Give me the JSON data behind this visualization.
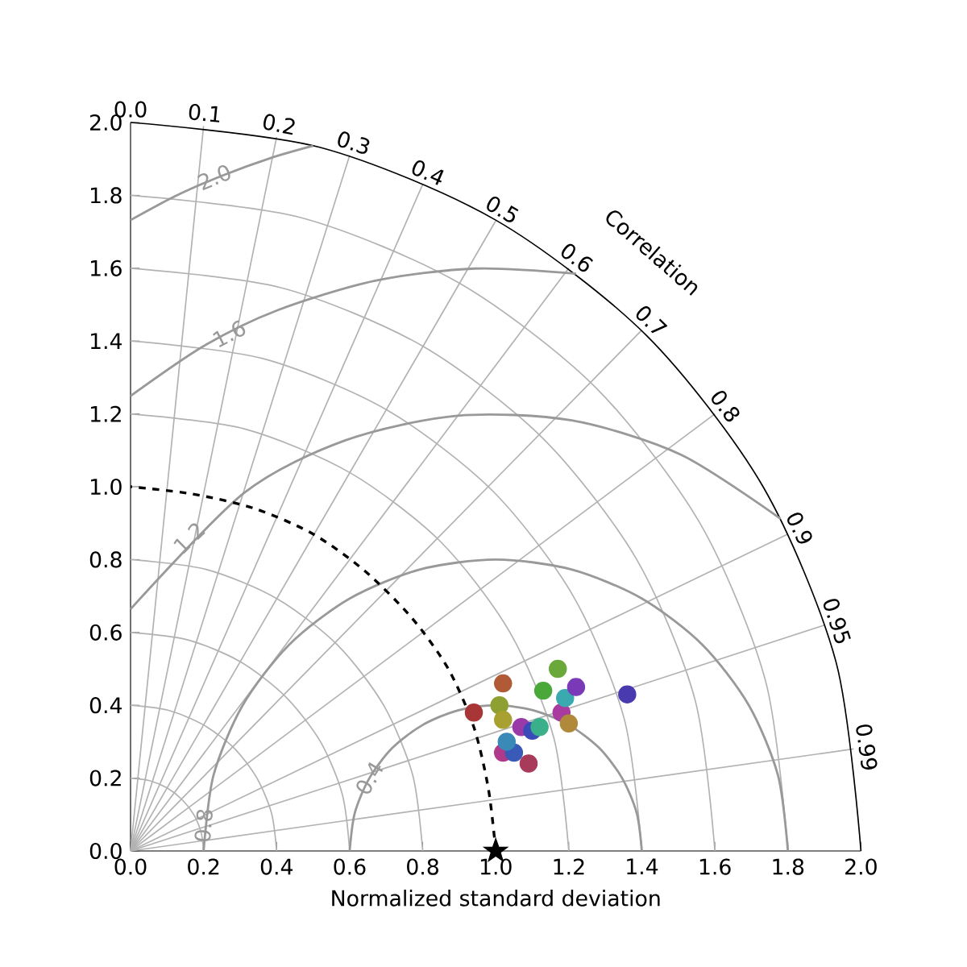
{
  "chart_data": {
    "type": "scatter",
    "xlabel": "Normalized standard deviation",
    "xlim": [
      0,
      2
    ],
    "ylim": [
      0,
      2
    ],
    "xticks": [
      {
        "value": 0,
        "label": "0.0"
      },
      0.2,
      0.4,
      0.6,
      0.8,
      {
        "value": 1,
        "label": "1.0"
      },
      1.2,
      1.4,
      1.6,
      1.8,
      {
        "value": 2,
        "label": "2.0"
      }
    ],
    "yticks": [
      {
        "value": 0,
        "label": "0.0"
      },
      0.2,
      0.4,
      0.6,
      0.8,
      {
        "value": 1,
        "label": "1.0"
      },
      1.2,
      1.4,
      1.6,
      1.8,
      {
        "value": 2,
        "label": "2.0"
      }
    ],
    "series": [
      {
        "type": "line",
        "color": "#b2b2b2",
        "x": [
          0.2,
          0.193,
          0.173,
          0.141,
          0.1,
          0.052,
          0
        ],
        "values": [
          0,
          0.052,
          0.1,
          0.141,
          0.173,
          0.193,
          0.2
        ]
      },
      {
        "type": "line",
        "color": "#b2b2b2",
        "x": [
          0.4,
          0.386,
          0.346,
          0.283,
          0.2,
          0.104,
          0
        ],
        "values": [
          0,
          0.104,
          0.2,
          0.283,
          0.346,
          0.386,
          0.4
        ]
      },
      {
        "type": "line",
        "color": "#b2b2b2",
        "x": [
          0.6,
          0.58,
          0.52,
          0.424,
          0.3,
          0.155,
          0
        ],
        "values": [
          0,
          0.155,
          0.3,
          0.424,
          0.52,
          0.58,
          0.6
        ]
      },
      {
        "type": "line",
        "color": "#b2b2b2",
        "x": [
          0.8,
          0.773,
          0.693,
          0.566,
          0.4,
          0.207,
          0
        ],
        "values": [
          0,
          0.207,
          0.4,
          0.566,
          0.693,
          0.773,
          0.8
        ]
      },
      {
        "type": "line",
        "color": "#b2b2b2",
        "x": [
          1.2,
          1.159,
          1.039,
          0.849,
          0.6,
          0.311,
          0
        ],
        "values": [
          0,
          0.311,
          0.6,
          0.849,
          1.039,
          1.159,
          1.2
        ]
      },
      {
        "type": "line",
        "color": "#b2b2b2",
        "x": [
          1.4,
          1.352,
          1.212,
          0.99,
          0.7,
          0.362,
          0
        ],
        "values": [
          0,
          0.362,
          0.7,
          0.99,
          1.212,
          1.352,
          1.4
        ]
      },
      {
        "type": "line",
        "color": "#b2b2b2",
        "x": [
          1.6,
          1.546,
          1.386,
          1.131,
          0.8,
          0.414,
          0
        ],
        "values": [
          0,
          0.414,
          0.8,
          1.131,
          1.386,
          1.546,
          1.6
        ]
      },
      {
        "type": "line",
        "color": "#b2b2b2",
        "x": [
          1.8,
          1.739,
          1.559,
          1.273,
          0.9,
          0.466,
          0
        ],
        "values": [
          0,
          0.466,
          0.9,
          1.273,
          1.559,
          1.739,
          1.8
        ]
      },
      {
        "type": "line",
        "color": "#b2b2b2",
        "x": [
          0,
          0.1,
          0.2
        ],
        "values": [
          0,
          0.995,
          1.99
        ]
      },
      {
        "type": "line",
        "color": "#b2b2b2",
        "x": [
          0,
          0.2,
          0.4
        ],
        "values": [
          0,
          0.98,
          1.96
        ]
      },
      {
        "type": "line",
        "color": "#b2b2b2",
        "x": [
          0,
          0.3,
          0.6
        ],
        "values": [
          0,
          0.955,
          1.91
        ]
      },
      {
        "type": "line",
        "color": "#b2b2b2",
        "x": [
          0,
          0.4,
          0.8
        ],
        "values": [
          0,
          0.915,
          1.83
        ]
      },
      {
        "type": "line",
        "color": "#b2b2b2",
        "x": [
          0,
          0.5,
          1.0
        ],
        "values": [
          0,
          0.865,
          1.73
        ]
      },
      {
        "type": "line",
        "color": "#b2b2b2",
        "x": [
          0,
          0.6,
          1.2
        ],
        "values": [
          0,
          0.8,
          1.6
        ]
      },
      {
        "type": "line",
        "color": "#b2b2b2",
        "x": [
          0,
          0.7,
          1.4
        ],
        "values": [
          0,
          0.715,
          1.43
        ]
      },
      {
        "type": "line",
        "color": "#b2b2b2",
        "x": [
          0,
          0.8,
          1.6
        ],
        "values": [
          0,
          0.6,
          1.2
        ]
      },
      {
        "type": "line",
        "color": "#b2b2b2",
        "x": [
          0,
          0.9,
          1.8
        ],
        "values": [
          0,
          0.435,
          0.87
        ]
      },
      {
        "type": "line",
        "color": "#b2b2b2",
        "x": [
          0,
          0.95,
          1.9
        ],
        "values": [
          0,
          0.31,
          0.62
        ]
      },
      {
        "type": "line",
        "color": "#b2b2b2",
        "x": [
          0,
          0.99,
          1.98
        ],
        "values": [
          0,
          0.14,
          0.28
        ]
      },
      {
        "type": "line",
        "color": "#000000",
        "x": [
          2,
          1.932,
          1.732,
          1.414,
          1,
          0.518,
          0
        ],
        "values": [
          0,
          0.518,
          1,
          1.414,
          1.732,
          1.932,
          2
        ]
      },
      {
        "type": "line",
        "color": "#999999",
        "x": [
          1.4,
          1.386,
          1.346,
          1.283,
          1.2,
          1.104,
          1,
          0.896,
          0.8,
          0.717,
          0.654,
          0.614,
          0.6
        ],
        "values": [
          0,
          0.104,
          0.2,
          0.283,
          0.346,
          0.386,
          0.4,
          0.386,
          0.346,
          0.283,
          0.2,
          0.104,
          0
        ]
      },
      {
        "type": "line",
        "color": "#999999",
        "x": [
          1.8,
          1.773,
          1.693,
          1.566,
          1.4,
          1.207,
          1,
          0.793,
          0.6,
          0.434,
          0.307,
          0.227,
          0.2
        ],
        "values": [
          0,
          0.207,
          0.4,
          0.566,
          0.693,
          0.773,
          0.8,
          0.773,
          0.693,
          0.566,
          0.4,
          0.207,
          0
        ]
      },
      {
        "type": "line",
        "color": "#999999",
        "x": [
          1.78,
          1.507,
          1.208,
          0.896,
          0.59,
          0.311,
          0
        ],
        "values": [
          0.912,
          1.088,
          1.182,
          1.195,
          1.128,
          0.983,
          0.664
        ]
      },
      {
        "type": "line",
        "color": "#999999",
        "x": [
          1.22,
          0.944,
          0.667,
          0.401,
          0.2,
          0
        ],
        "values": [
          1.585,
          1.599,
          1.565,
          1.484,
          1.386,
          1.249
        ]
      },
      {
        "type": "line",
        "color": "#999999",
        "x": [
          0.5,
          0.382,
          0.251,
          0.123,
          0
        ],
        "values": [
          1.936,
          1.902,
          1.854,
          1.798,
          1.732
        ]
      },
      {
        "type": "line",
        "line_style": "dashed",
        "color": "#000000",
        "x": [
          1.0,
          0.98,
          0.94,
          0.87,
          0.77,
          0.64,
          0.5,
          0.34,
          0.17,
          0.0
        ],
        "values": [
          0.0,
          0.17,
          0.34,
          0.5,
          0.64,
          0.77,
          0.87,
          0.94,
          0.98,
          1.0
        ]
      },
      {
        "type": "scatter",
        "marker": "circle",
        "x": [
          0.94,
          1.02,
          1.01,
          1.02,
          1.02,
          1.05,
          1.03,
          1.09,
          1.07,
          1.1,
          1.12,
          1.13,
          1.17,
          1.18,
          1.19,
          1.2,
          1.22,
          1.36
        ],
        "values": [
          0.38,
          0.46,
          0.4,
          0.36,
          0.27,
          0.27,
          0.3,
          0.24,
          0.34,
          0.33,
          0.34,
          0.44,
          0.5,
          0.38,
          0.42,
          0.35,
          0.45,
          0.43
        ],
        "colors": [
          "#a83636",
          "#b05a36",
          "#8fa032",
          "#a8a030",
          "#b03a8a",
          "#3a5ab8",
          "#3a8ab8",
          "#a83a5a",
          "#9a3aa8",
          "#3a4ab8",
          "#3ab08a",
          "#4aa83a",
          "#6aa83a",
          "#a83aa0",
          "#3aaab0",
          "#b08a3a",
          "#7a3ab8",
          "#4a3ab0"
        ]
      },
      {
        "type": "scatter",
        "marker": "star",
        "color": "#000000",
        "x": [
          1.0
        ],
        "values": [
          0.0
        ]
      }
    ],
    "annotations": [
      "Correlation",
      {
        "text": "0.0",
        "x": 0,
        "y": 2
      },
      {
        "text": "0.1",
        "x": 0.2,
        "y": 1.99
      },
      {
        "text": "0.2",
        "x": 0.4,
        "y": 1.96
      },
      {
        "text": "0.3",
        "x": 0.6,
        "y": 1.91
      },
      {
        "text": "0.4",
        "x": 0.8,
        "y": 1.83
      },
      {
        "text": "0.5",
        "x": 1.0,
        "y": 1.73
      },
      {
        "text": "0.6",
        "x": 1.2,
        "y": 1.6
      },
      {
        "text": "0.7",
        "x": 1.4,
        "y": 1.43
      },
      {
        "text": "0.8",
        "x": 1.6,
        "y": 1.2
      },
      {
        "text": "0.9",
        "x": 1.8,
        "y": 0.87
      },
      {
        "text": "0.95",
        "x": 1.9,
        "y": 0.62
      },
      {
        "text": "0.99",
        "x": 1.98,
        "y": 0.28
      },
      {
        "text": "0.4",
        "x": 0.654,
        "y": 0.2
      },
      {
        "text": "0.8",
        "x": 0.2,
        "y": 0.07
      },
      {
        "text": "1.2",
        "x": 0.16,
        "y": 0.86
      },
      {
        "text": "1.6",
        "x": 0.27,
        "y": 1.42
      },
      {
        "text": "2.0",
        "x": 0.23,
        "y": 1.85
      }
    ]
  }
}
